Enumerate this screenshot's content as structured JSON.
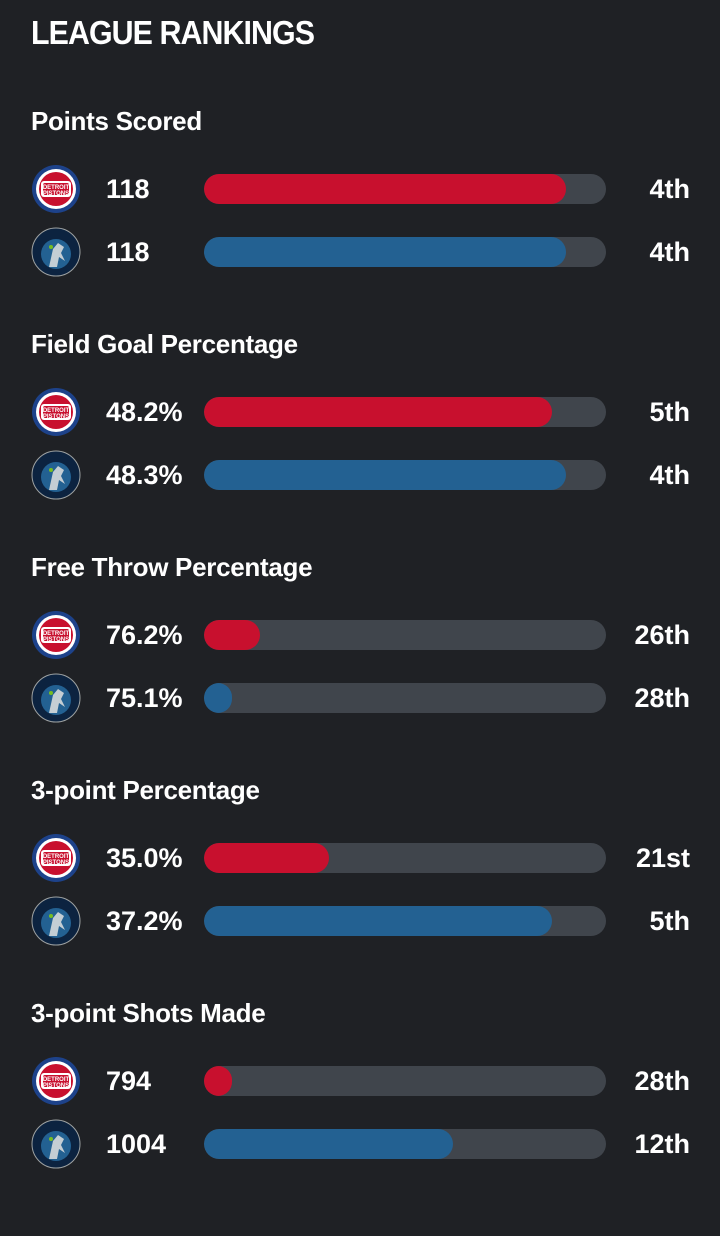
{
  "title": "LEAGUE RANKINGS",
  "teams": {
    "pistons": {
      "color": "#c8102e",
      "logo_text": "DETROIT PISTONS"
    },
    "wolves": {
      "color": "#236192",
      "logo_text": "MINNESOTA TIMBERWOLVES"
    }
  },
  "sections": [
    {
      "title": "Points Scored",
      "rows": [
        {
          "value": "118",
          "rank": "4th",
          "fill": 0.9
        },
        {
          "value": "118",
          "rank": "4th",
          "fill": 0.9
        }
      ]
    },
    {
      "title": "Field Goal Percentage",
      "rows": [
        {
          "value": "48.2%",
          "rank": "5th",
          "fill": 0.866
        },
        {
          "value": "48.3%",
          "rank": "4th",
          "fill": 0.9
        }
      ]
    },
    {
      "title": "Free Throw Percentage",
      "rows": [
        {
          "value": "76.2%",
          "rank": "26th",
          "fill": 0.14
        },
        {
          "value": "75.1%",
          "rank": "28th",
          "fill": 0.07
        }
      ]
    },
    {
      "title": "3-point Percentage",
      "rows": [
        {
          "value": "35.0%",
          "rank": "21st",
          "fill": 0.31
        },
        {
          "value": "37.2%",
          "rank": "5th",
          "fill": 0.866
        }
      ]
    },
    {
      "title": "3-point Shots Made",
      "rows": [
        {
          "value": "794",
          "rank": "28th",
          "fill": 0.07
        },
        {
          "value": "1004",
          "rank": "12th",
          "fill": 0.62
        }
      ]
    }
  ]
}
